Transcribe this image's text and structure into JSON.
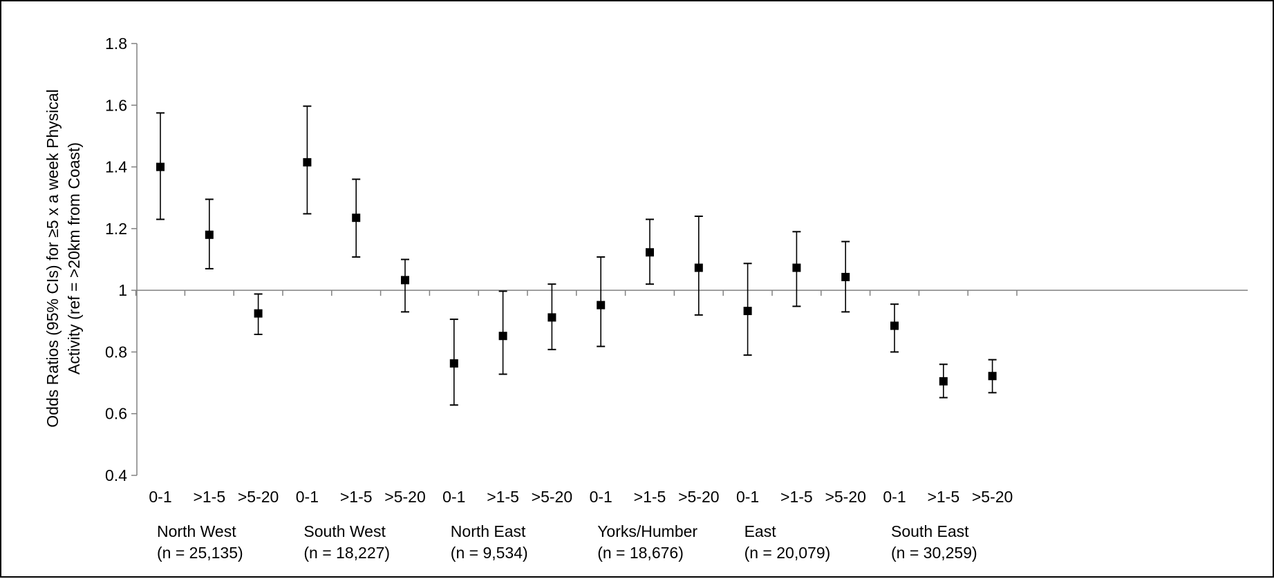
{
  "chart_data": {
    "type": "scatter",
    "subtype": "error-bar",
    "title": "",
    "xlabel": "",
    "ylabel": {
      "line1": "Odds Ratios (95% CIs) for ≥5 x a week Physical",
      "line2": "Activity (ref = >20km from Coast)"
    },
    "ylim": [
      0.4,
      1.8
    ],
    "yticks": [
      {
        "value": 0.4,
        "label": "0.4"
      },
      {
        "value": 0.6,
        "label": "0.6"
      },
      {
        "value": 0.8,
        "label": "0.8"
      },
      {
        "value": 1.0,
        "label": "1"
      },
      {
        "value": 1.2,
        "label": "1.2"
      },
      {
        "value": 1.4,
        "label": "1.4"
      },
      {
        "value": 1.6,
        "label": "1.6"
      },
      {
        "value": 1.8,
        "label": "1.8"
      }
    ],
    "reference_line": 1.0,
    "grid": false,
    "legend": "none",
    "marker_color": "#000000",
    "axis_color": "#808080",
    "groups": [
      {
        "name": "North West",
        "n": "(n = 25,135)",
        "points": [
          {
            "category": "0-1",
            "or": 1.4,
            "lo": 1.23,
            "hi": 1.575
          },
          {
            "category": ">1-5",
            "or": 1.18,
            "lo": 1.07,
            "hi": 1.295
          },
          {
            "category": ">5-20",
            "or": 0.925,
            "lo": 0.857,
            "hi": 0.988
          }
        ]
      },
      {
        "name": "South West",
        "n": "(n = 18,227)",
        "points": [
          {
            "category": "0-1",
            "or": 1.415,
            "lo": 1.248,
            "hi": 1.597
          },
          {
            "category": ">1-5",
            "or": 1.235,
            "lo": 1.108,
            "hi": 1.36
          },
          {
            "category": ">5-20",
            "or": 1.033,
            "lo": 0.93,
            "hi": 1.1
          }
        ]
      },
      {
        "name": "North East",
        "n": "(n = 9,534)",
        "points": [
          {
            "category": "0-1",
            "or": 0.763,
            "lo": 0.628,
            "hi": 0.906
          },
          {
            "category": ">1-5",
            "or": 0.852,
            "lo": 0.728,
            "hi": 0.997
          },
          {
            "category": ">5-20",
            "or": 0.912,
            "lo": 0.808,
            "hi": 1.02
          }
        ]
      },
      {
        "name": "Yorks/Humber",
        "n": "(n = 18,676)",
        "points": [
          {
            "category": "0-1",
            "or": 0.952,
            "lo": 0.818,
            "hi": 1.108
          },
          {
            "category": ">1-5",
            "or": 1.123,
            "lo": 1.02,
            "hi": 1.23
          },
          {
            "category": ">5-20",
            "or": 1.073,
            "lo": 0.92,
            "hi": 1.24
          }
        ]
      },
      {
        "name": "East",
        "n": "(n = 20,079)",
        "points": [
          {
            "category": "0-1",
            "or": 0.933,
            "lo": 0.79,
            "hi": 1.087
          },
          {
            "category": ">1-5",
            "or": 1.073,
            "lo": 0.948,
            "hi": 1.19
          },
          {
            "category": ">5-20",
            "or": 1.043,
            "lo": 0.93,
            "hi": 1.158
          }
        ]
      },
      {
        "name": "South East",
        "n": "(n = 30,259)",
        "points": [
          {
            "category": "0-1",
            "or": 0.885,
            "lo": 0.8,
            "hi": 0.955
          },
          {
            "category": ">1-5",
            "or": 0.705,
            "lo": 0.652,
            "hi": 0.76
          },
          {
            "category": ">5-20",
            "or": 0.722,
            "lo": 0.668,
            "hi": 0.775
          }
        ]
      }
    ]
  }
}
